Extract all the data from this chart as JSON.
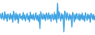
{
  "values": [
    1.2,
    0.8,
    -0.5,
    1.5,
    0.3,
    -0.8,
    1.8,
    -0.3,
    0.9,
    -1.2,
    1.1,
    0.5,
    -0.7,
    1.3,
    -0.4,
    0.8,
    -1.5,
    2.0,
    0.6,
    -0.9,
    1.4,
    -0.6,
    1.0,
    -1.8,
    0.7,
    1.2,
    -0.3,
    0.5,
    -0.8,
    1.6,
    -0.5,
    0.9,
    -1.1,
    0.4,
    1.3,
    -0.7,
    0.6,
    -1.4,
    1.7,
    -0.4,
    0.8,
    -0.6,
    1.1,
    -0.9,
    0.5,
    1.5,
    -0.8,
    0.7,
    -1.2,
    1.0,
    -3.5,
    1.8,
    0.4,
    -0.6,
    1.2,
    -0.5,
    0.9,
    -1.0,
    1.4,
    0.6,
    -0.7,
    1.5,
    -0.4,
    0.8,
    -1.3,
    1.1,
    0.5,
    -0.8,
    1.6,
    -0.6,
    1.0,
    -1.6,
    4.5,
    -0.5,
    1.8,
    0.7,
    -1.1,
    1.3,
    -0.4,
    0.9,
    -4.5,
    2.0,
    1.2,
    -0.8,
    1.5,
    0.4,
    -0.9,
    1.1,
    -0.5,
    0.7,
    -3.0,
    1.6,
    0.8,
    -1.4,
    1.0,
    -0.6,
    1.3,
    0.5,
    -0.7,
    1.2,
    -1.0,
    0.9,
    -0.5,
    1.4,
    -0.8,
    0.6,
    -1.2,
    1.5,
    0.4,
    -0.9,
    1.1,
    -0.4,
    0.8,
    -1.5,
    1.3,
    0.7,
    -0.6,
    1.0,
    -0.8,
    0.5
  ],
  "line_color": "#3399dd",
  "fill_color": "#66bbee",
  "fill_alpha": 1.0,
  "background_color": "#ffffff",
  "linewidth": 0.5
}
